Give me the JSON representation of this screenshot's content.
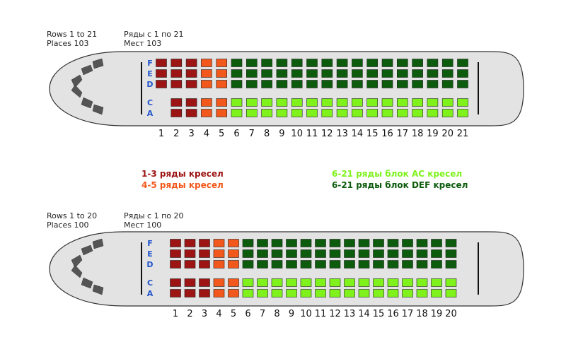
{
  "colors": {
    "rows_1_3": "#9c1414",
    "rows_4_5": "#f2581c",
    "block_def": "#0d5c0d",
    "block_ac": "#7ff21c",
    "seat_letter": "#2255cc",
    "fuselage_fill": "#e3e3e3",
    "outline": "#333333"
  },
  "legend": {
    "rows_1_3": "1-3 ряды кресел",
    "rows_4_5": "4-5 ряды кресел",
    "block_ac": "6-21 ряды блок AC кресел",
    "block_def": "6-21 ряды блок DEF кресел"
  },
  "plans": [
    {
      "rows_en": "Rows 1 to 21",
      "places_en": "Places 103",
      "rows_ru": "Ряды с 1 по 21",
      "places_ru": "Мест 103",
      "row_count": 21,
      "seat_letters_top": [
        "F",
        "E",
        "D"
      ],
      "seat_letters_bottom": [
        "C",
        "A"
      ],
      "row_numbers": [
        "1",
        "2",
        "3",
        "4",
        "5",
        "6",
        "7",
        "8",
        "9",
        "10",
        "11",
        "12",
        "13",
        "14",
        "15",
        "16",
        "17",
        "18",
        "19",
        "20",
        "21"
      ]
    },
    {
      "rows_en": "Rows 1 to 20",
      "places_en": "Places 100",
      "rows_ru": "Ряды с 1 по 20",
      "places_ru": "Мест 100",
      "row_count": 20,
      "seat_letters_top": [
        "F",
        "E",
        "D"
      ],
      "seat_letters_bottom": [
        "C",
        "A"
      ],
      "row_numbers": [
        "1",
        "2",
        "3",
        "4",
        "5",
        "6",
        "7",
        "8",
        "9",
        "10",
        "11",
        "12",
        "13",
        "14",
        "15",
        "16",
        "17",
        "18",
        "19",
        "20"
      ]
    }
  ]
}
